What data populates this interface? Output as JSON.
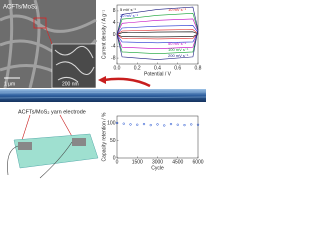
{
  "sem": {
    "label": "ACFTs/MoS₂",
    "scale_main": "1 μm",
    "scale_inset": "200 nm"
  },
  "device_label": "ACFTs/MoS₂ yarn electrode",
  "chart_data": [
    {
      "type": "line",
      "xlabel": "Potential / V",
      "ylabel": "Current density / A g⁻¹",
      "xlim": [
        0,
        0.8
      ],
      "ylim": [
        -10,
        10
      ],
      "xticks": [
        {
          "value": 0,
          "label": "0.0"
        },
        {
          "value": 0.2,
          "label": "0.2"
        },
        {
          "value": 0.4,
          "label": "0.4"
        },
        {
          "value": 0.6,
          "label": "0.6"
        },
        {
          "value": 0.8,
          "label": "0.8"
        }
      ],
      "yticks": [
        -8,
        -4,
        0,
        4,
        8
      ],
      "series": [
        {
          "name": "5 mV s⁻¹",
          "color": "#000000",
          "x": [
            0,
            0.05,
            0.4,
            0.75,
            0.8,
            0.75,
            0.4,
            0.05,
            0
          ],
          "values": [
            0,
            0.6,
            0.8,
            0.9,
            0.2,
            -0.7,
            -0.8,
            -0.7,
            0
          ]
        },
        {
          "name": "10 mV s⁻¹",
          "color": "#e02020",
          "x": [
            0,
            0.05,
            0.4,
            0.75,
            0.8,
            0.75,
            0.4,
            0.05,
            0
          ],
          "values": [
            0,
            1.2,
            1.5,
            1.7,
            0.3,
            -1.3,
            -1.5,
            -1.3,
            0
          ]
        },
        {
          "name": "20 mV s⁻¹",
          "color": "#2030d0",
          "x": [
            0,
            0.05,
            0.4,
            0.75,
            0.8,
            0.75,
            0.4,
            0.05,
            0
          ],
          "values": [
            0,
            2.2,
            2.8,
            3.1,
            0.6,
            -2.5,
            -2.8,
            -2.5,
            0
          ]
        },
        {
          "name": "50 mV s⁻¹",
          "color": "#c000c0",
          "x": [
            0,
            0.05,
            0.4,
            0.75,
            0.8,
            0.75,
            0.4,
            0.05,
            0
          ],
          "values": [
            0,
            3.8,
            4.8,
            5.3,
            1,
            -4.3,
            -4.8,
            -4.3,
            0
          ]
        },
        {
          "name": "100 mV s⁻¹",
          "color": "#10a030",
          "x": [
            0,
            0.05,
            0.4,
            0.75,
            0.8,
            0.75,
            0.4,
            0.05,
            0
          ],
          "values": [
            0,
            5.2,
            6.5,
            7.2,
            1.3,
            -5.9,
            -6.5,
            -5.9,
            0
          ]
        },
        {
          "name": "200 mV s⁻¹",
          "color": "#1a1a80",
          "x": [
            0,
            0.05,
            0.4,
            0.75,
            0.8,
            0.75,
            0.4,
            0.05,
            0
          ],
          "values": [
            0,
            6.8,
            8.5,
            9.3,
            1.7,
            -7.6,
            -8.5,
            -7.6,
            0
          ]
        }
      ]
    },
    {
      "type": "scatter",
      "xlabel": "Cycle",
      "ylabel": "Capacity retention / %",
      "xlim": [
        0,
        6000
      ],
      "ylim": [
        0,
        120
      ],
      "xticks": [
        0,
        1500,
        3000,
        4500,
        6000
      ],
      "yticks": [
        0,
        50,
        100
      ],
      "color": "#2050d0",
      "x": [
        0,
        500,
        1000,
        1500,
        2000,
        2500,
        3000,
        3500,
        4000,
        4500,
        5000,
        5500,
        6000
      ],
      "values": [
        100,
        98,
        96,
        95,
        97,
        94,
        96,
        93,
        97,
        95,
        94,
        96,
        95
      ]
    }
  ]
}
